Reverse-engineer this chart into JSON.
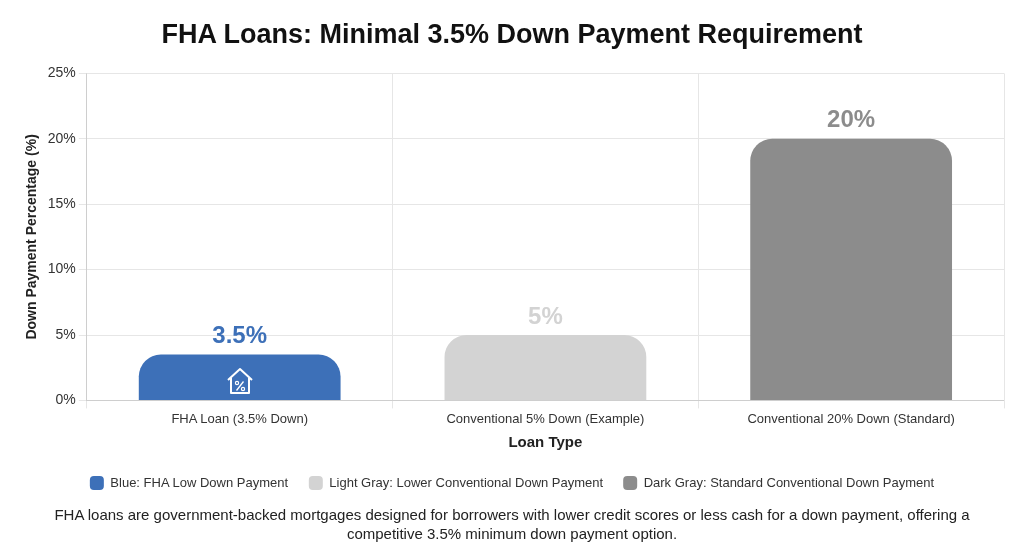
{
  "chart_data": {
    "type": "bar",
    "title": "FHA Loans: Minimal 3.5% Down Payment Requirement",
    "xlabel": "Loan Type",
    "ylabel": "Down Payment Percentage (%)",
    "categories": [
      "FHA Loan (3.5% Down)",
      "Conventional 5% Down (Example)",
      "Conventional 20% Down (Standard)"
    ],
    "series": [
      {
        "name": "Blue: FHA Low Down Payment",
        "color": "#3d70b8",
        "values": [
          3.5,
          null,
          null
        ],
        "value_labels": [
          "3.5%",
          null,
          null
        ]
      },
      {
        "name": "Light Gray: Lower Conventional Down Payment",
        "color": "#d3d3d3",
        "values": [
          null,
          5,
          null
        ],
        "value_labels": [
          null,
          "5%",
          null
        ]
      },
      {
        "name": "Dark Gray: Standard Conventional Down Payment",
        "color": "#8c8c8c",
        "values": [
          null,
          null,
          20
        ],
        "value_labels": [
          null,
          null,
          "20%"
        ]
      }
    ],
    "ylim": [
      0,
      25
    ],
    "yticks": [
      {
        "value": 0,
        "label": "0%"
      },
      {
        "value": 5,
        "label": "5%"
      },
      {
        "value": 10,
        "label": "10%"
      },
      {
        "value": 15,
        "label": "15%"
      },
      {
        "value": 20,
        "label": "20%"
      },
      {
        "value": 25,
        "label": "25%"
      }
    ],
    "grid": true,
    "legend": "bottom",
    "annotations": [
      "FHA loans are government-backed mortgages designed for borrowers with lower credit scores or less cash for a down payment, offering a competitive 3.5% minimum down payment option."
    ]
  }
}
